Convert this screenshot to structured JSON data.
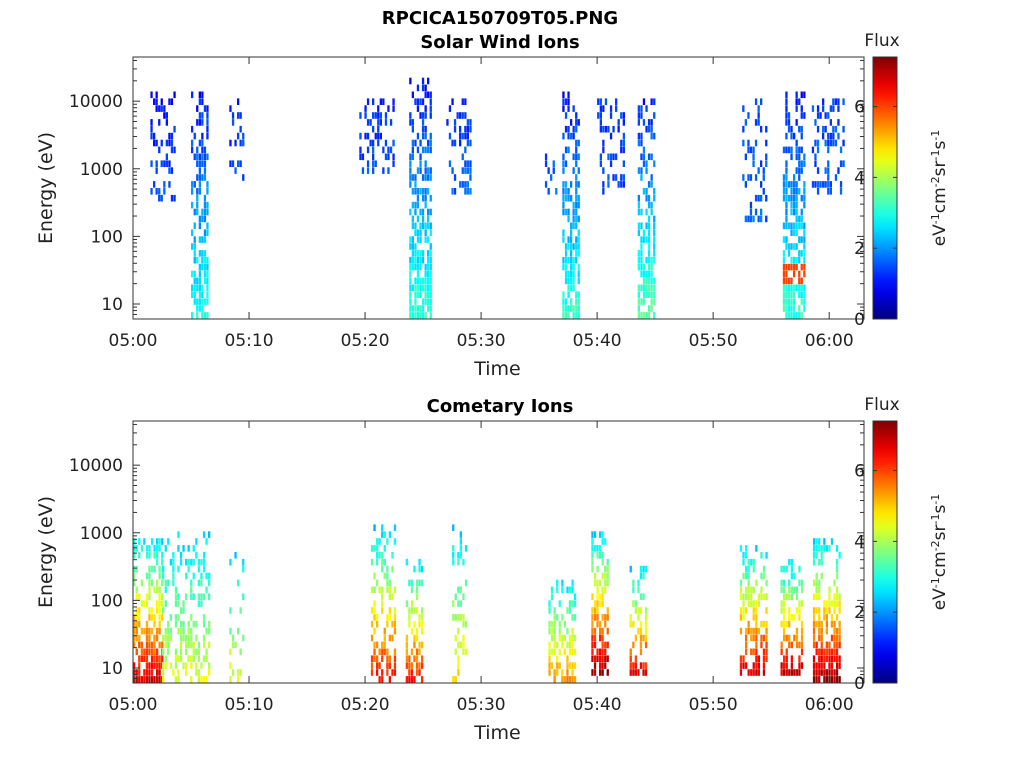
{
  "figure_title": "RPCICA150709T05.PNG",
  "chart_data": [
    {
      "type": "heatmap",
      "title": "Solar Wind Ions",
      "xlabel": "Time",
      "ylabel": "Energy (eV)",
      "y_scale": "log",
      "xlim_minutes": [
        0,
        63
      ],
      "ylim": [
        6,
        45000
      ],
      "x_tick_labels": [
        "05:00",
        "05:10",
        "05:20",
        "05:30",
        "05:40",
        "05:50",
        "06:00"
      ],
      "x_tick_minutes": [
        0,
        10,
        20,
        30,
        40,
        50,
        60
      ],
      "y_tick_labels": [
        "10",
        "100",
        "1000",
        "10000"
      ],
      "y_tick_values": [
        10,
        100,
        1000,
        10000
      ],
      "colorbar": {
        "title": "Flux",
        "label": "eV-1cm-2sr-1s-1",
        "range": [
          0,
          7.4
        ],
        "tick_labels": [
          "0",
          "2",
          "4",
          "6"
        ],
        "tick_values": [
          0,
          2,
          4,
          6
        ],
        "colormap": "jet"
      },
      "bursts": [
        {
          "t0": 1.5,
          "t1": 3.5,
          "emin": 300,
          "emax": 15000,
          "flux_low": 1.5,
          "flux_high": 1.0,
          "density": 0.35,
          "kind": "scatter"
        },
        {
          "t0": 5.0,
          "t1": 6.5,
          "emin": 6,
          "emax": 15000,
          "flux_low": 3.0,
          "flux_high": 1.0,
          "density": 0.75,
          "kind": "core",
          "hot_energy": 0,
          "hot_flux": 0
        },
        {
          "t0": 8.3,
          "t1": 9.5,
          "emin": 500,
          "emax": 10000,
          "flux_low": 1.4,
          "flux_high": 1.2,
          "density": 0.35,
          "kind": "scatter"
        },
        {
          "t0": 19.5,
          "t1": 22.5,
          "emin": 800,
          "emax": 10000,
          "flux_low": 1.5,
          "flux_high": 1.3,
          "density": 0.3,
          "kind": "scatter"
        },
        {
          "t0": 23.8,
          "t1": 25.7,
          "emin": 6,
          "emax": 20000,
          "flux_low": 3.2,
          "flux_high": 1.0,
          "density": 0.8,
          "kind": "core",
          "hot_energy": 0,
          "hot_flux": 0
        },
        {
          "t0": 27.0,
          "t1": 29.0,
          "emin": 400,
          "emax": 10000,
          "flux_low": 1.6,
          "flux_high": 1.3,
          "density": 0.35,
          "kind": "scatter"
        },
        {
          "t0": 35.5,
          "t1": 36.5,
          "emin": 400,
          "emax": 1500,
          "flux_low": 1.6,
          "flux_high": 1.5,
          "density": 0.3,
          "kind": "scatter"
        },
        {
          "t0": 37.0,
          "t1": 38.5,
          "emin": 6,
          "emax": 15000,
          "flux_low": 3.2,
          "flux_high": 1.0,
          "density": 0.8,
          "kind": "core",
          "hot_energy": 0,
          "hot_flux": 0
        },
        {
          "t0": 40.0,
          "t1": 42.2,
          "emin": 400,
          "emax": 12000,
          "flux_low": 1.5,
          "flux_high": 1.3,
          "density": 0.35,
          "kind": "scatter"
        },
        {
          "t0": 43.5,
          "t1": 45.0,
          "emin": 6,
          "emax": 15000,
          "flux_low": 3.4,
          "flux_high": 1.0,
          "density": 0.8,
          "kind": "core",
          "hot_energy": 0,
          "hot_flux": 0
        },
        {
          "t0": 52.5,
          "t1": 54.5,
          "emin": 150,
          "emax": 10000,
          "flux_low": 1.6,
          "flux_high": 1.4,
          "density": 0.3,
          "kind": "scatter"
        },
        {
          "t0": 56.0,
          "t1": 57.8,
          "emin": 6,
          "emax": 15000,
          "flux_low": 3.2,
          "flux_high": 1.0,
          "density": 0.8,
          "kind": "core",
          "hot_energy": 30,
          "hot_flux": 6.0
        },
        {
          "t0": 58.5,
          "t1": 61.2,
          "emin": 400,
          "emax": 12000,
          "flux_low": 1.6,
          "flux_high": 1.4,
          "density": 0.35,
          "kind": "scatter"
        }
      ]
    },
    {
      "type": "heatmap",
      "title": "Cometary Ions",
      "xlabel": "Time",
      "ylabel": "Energy (eV)",
      "y_scale": "log",
      "xlim_minutes": [
        0,
        63
      ],
      "ylim": [
        6,
        45000
      ],
      "x_tick_labels": [
        "05:00",
        "05:10",
        "05:20",
        "05:30",
        "05:40",
        "05:50",
        "06:00"
      ],
      "x_tick_minutes": [
        0,
        10,
        20,
        30,
        40,
        50,
        60
      ],
      "y_tick_labels": [
        "10",
        "100",
        "1000",
        "10000"
      ],
      "y_tick_values": [
        10,
        100,
        1000,
        10000
      ],
      "colorbar": {
        "title": "Flux",
        "label": "eV-1cm-2sr-1s-1",
        "range": [
          0,
          7.4
        ],
        "tick_labels": [
          "0",
          "2",
          "4",
          "6"
        ],
        "tick_values": [
          0,
          2,
          4,
          6
        ],
        "colormap": "jet"
      },
      "bursts": [
        {
          "t0": 0.0,
          "t1": 2.5,
          "emin": 6,
          "emax": 800,
          "flux_low": 6.8,
          "flux_high": 2.6,
          "density": 0.8,
          "kind": "hot"
        },
        {
          "t0": 2.5,
          "t1": 6.5,
          "emin": 6,
          "emax": 1000,
          "flux_low": 4.5,
          "flux_high": 2.4,
          "density": 0.45,
          "kind": "hot"
        },
        {
          "t0": 8.3,
          "t1": 9.5,
          "emin": 6,
          "emax": 500,
          "flux_low": 4.5,
          "flux_high": 2.5,
          "density": 0.4,
          "kind": "hot"
        },
        {
          "t0": 20.5,
          "t1": 22.5,
          "emin": 6,
          "emax": 1200,
          "flux_low": 6.5,
          "flux_high": 2.4,
          "density": 0.6,
          "kind": "hot"
        },
        {
          "t0": 23.5,
          "t1": 25.0,
          "emin": 6,
          "emax": 400,
          "flux_low": 6.4,
          "flux_high": 2.5,
          "density": 0.65,
          "kind": "hot"
        },
        {
          "t0": 27.5,
          "t1": 28.7,
          "emin": 6,
          "emax": 1200,
          "flux_low": 5.0,
          "flux_high": 2.4,
          "density": 0.5,
          "kind": "hot"
        },
        {
          "t0": 35.8,
          "t1": 38.2,
          "emin": 6,
          "emax": 200,
          "flux_low": 5.5,
          "flux_high": 2.5,
          "density": 0.6,
          "kind": "hot"
        },
        {
          "t0": 39.5,
          "t1": 41.0,
          "emin": 8,
          "emax": 1100,
          "flux_low": 7.2,
          "flux_high": 2.4,
          "density": 0.75,
          "kind": "hot"
        },
        {
          "t0": 42.8,
          "t1": 44.3,
          "emin": 8,
          "emax": 300,
          "flux_low": 6.6,
          "flux_high": 2.5,
          "density": 0.65,
          "kind": "hot"
        },
        {
          "t0": 52.3,
          "t1": 54.7,
          "emin": 8,
          "emax": 700,
          "flux_low": 6.8,
          "flux_high": 2.4,
          "density": 0.65,
          "kind": "hot"
        },
        {
          "t0": 55.8,
          "t1": 57.6,
          "emin": 8,
          "emax": 400,
          "flux_low": 6.9,
          "flux_high": 2.4,
          "density": 0.7,
          "kind": "hot"
        },
        {
          "t0": 58.6,
          "t1": 61.0,
          "emin": 6,
          "emax": 900,
          "flux_low": 7.3,
          "flux_high": 2.4,
          "density": 0.75,
          "kind": "hot"
        }
      ]
    }
  ]
}
